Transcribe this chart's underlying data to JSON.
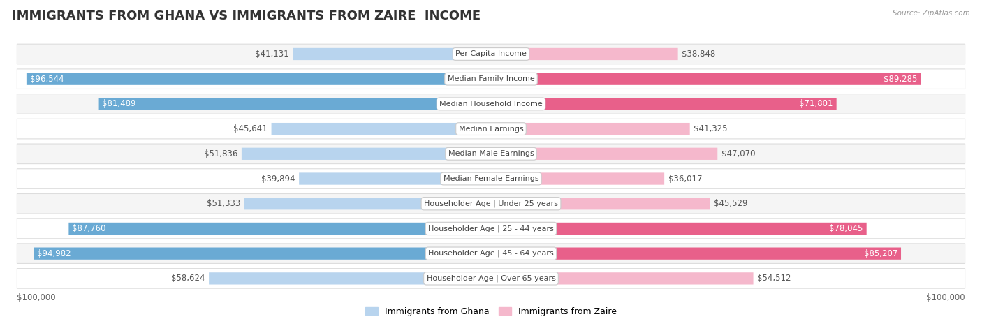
{
  "title": "IMMIGRANTS FROM GHANA VS IMMIGRANTS FROM ZAIRE  INCOME",
  "source": "Source: ZipAtlas.com",
  "categories": [
    "Per Capita Income",
    "Median Family Income",
    "Median Household Income",
    "Median Earnings",
    "Median Male Earnings",
    "Median Female Earnings",
    "Householder Age | Under 25 years",
    "Householder Age | 25 - 44 years",
    "Householder Age | 45 - 64 years",
    "Householder Age | Over 65 years"
  ],
  "ghana_values": [
    41131,
    96544,
    81489,
    45641,
    51836,
    39894,
    51333,
    87760,
    94982,
    58624
  ],
  "zaire_values": [
    38848,
    89285,
    71801,
    41325,
    47070,
    36017,
    45529,
    78045,
    85207,
    54512
  ],
  "ghana_labels": [
    "$41,131",
    "$96,544",
    "$81,489",
    "$45,641",
    "$51,836",
    "$39,894",
    "$51,333",
    "$87,760",
    "$94,982",
    "$58,624"
  ],
  "zaire_labels": [
    "$38,848",
    "$89,285",
    "$71,801",
    "$41,325",
    "$47,070",
    "$36,017",
    "$45,529",
    "$78,045",
    "$85,207",
    "$54,512"
  ],
  "ghana_color_light": "#b8d4ee",
  "ghana_color_dark": "#6aaad4",
  "zaire_color_light": "#f5b8cc",
  "zaire_color_dark": "#e8608a",
  "ghana_threshold": 65000,
  "zaire_threshold": 65000,
  "max_value": 100000,
  "legend_ghana": "Immigrants from Ghana",
  "legend_zaire": "Immigrants from Zaire",
  "row_bg_light": "#f5f5f5",
  "row_bg_white": "#ffffff",
  "label_fontsize": 8.5,
  "category_fontsize": 8.0,
  "title_fontsize": 13
}
